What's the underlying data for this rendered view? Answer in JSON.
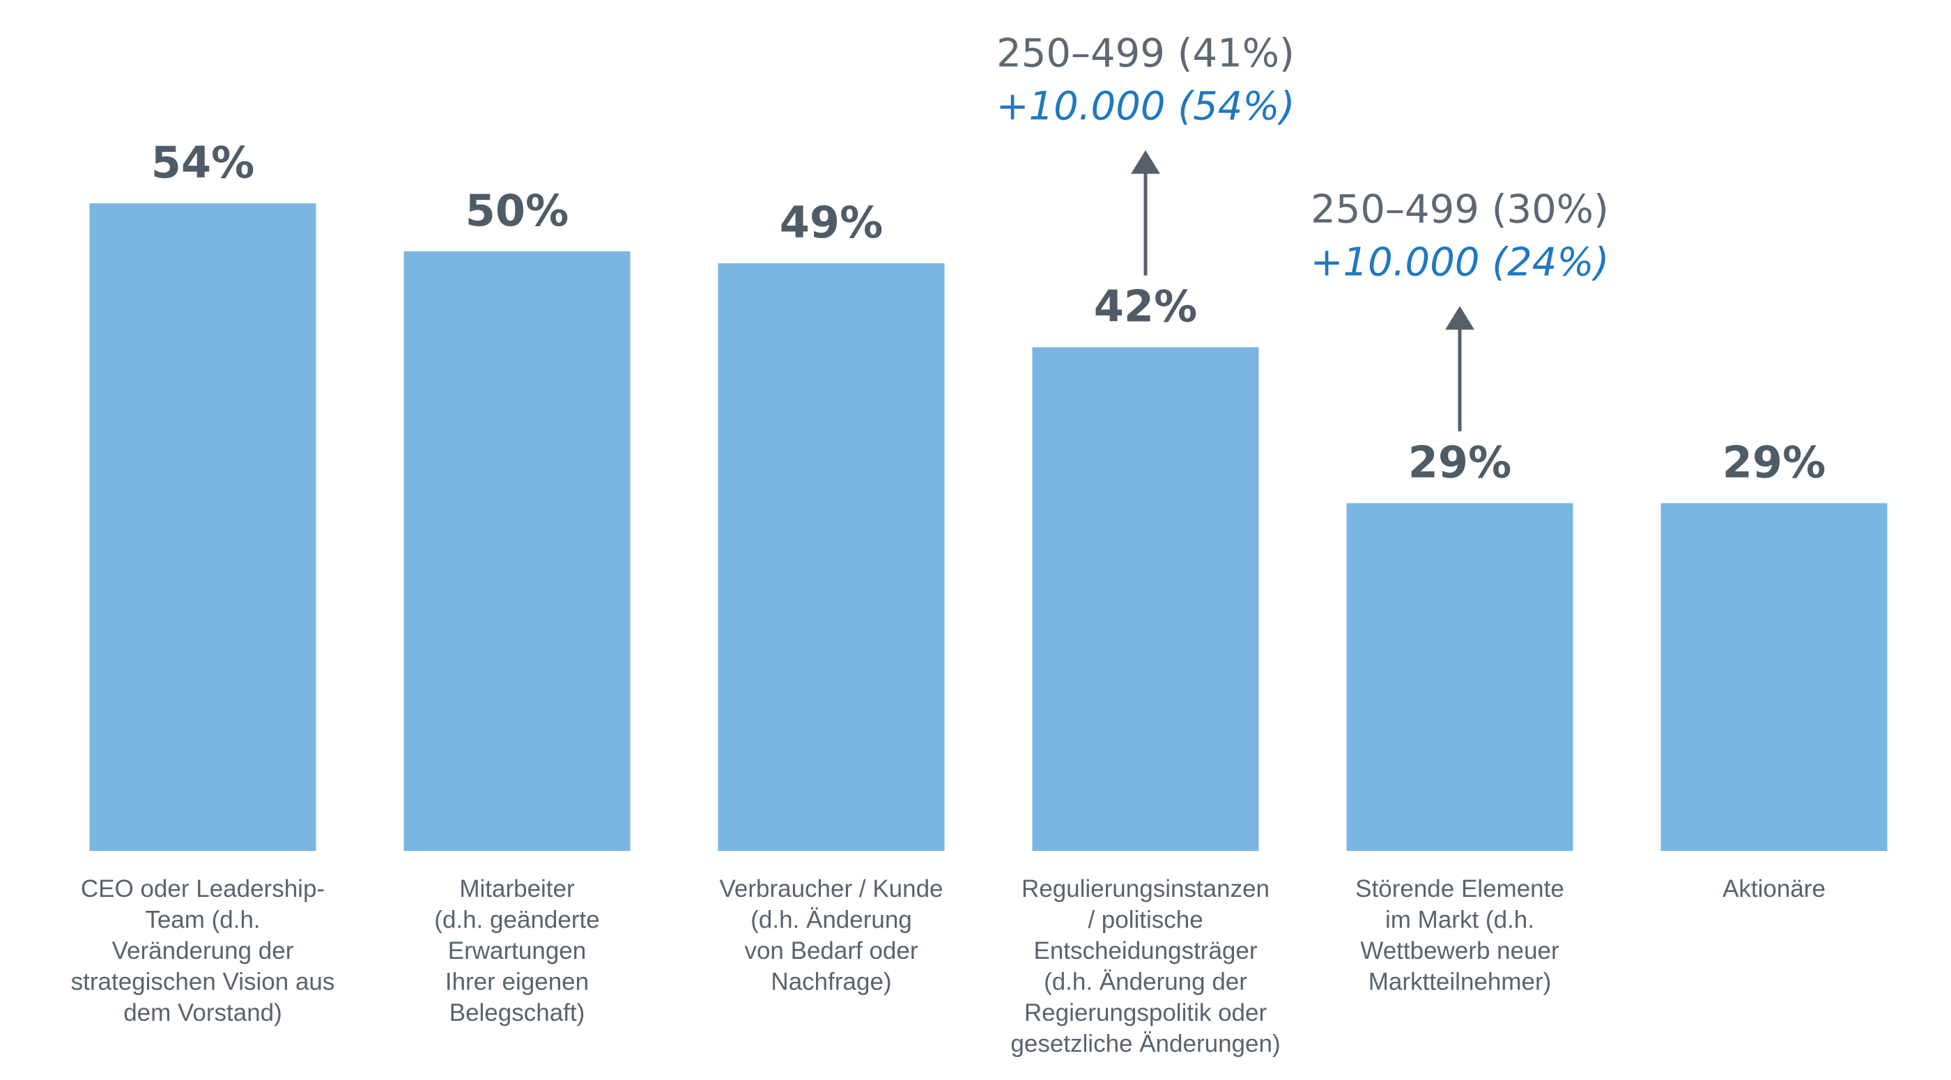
{
  "colors": {
    "bar": "#7BB5E2",
    "value_text": "#4F5B66",
    "label_text": "#58636D",
    "annotation_text": "#5D6873",
    "annotation_highlight": "#1F78C1",
    "arrow": "#56606B"
  },
  "chart_data": {
    "type": "bar",
    "ylim": [
      0,
      100
    ],
    "categories": [
      {
        "lines": [
          "CEO oder Leadership-",
          "Team (d.h.",
          "Veränderung der",
          "strategischen Vision aus",
          "dem Vorstand)"
        ]
      },
      {
        "lines": [
          "Mitarbeiter",
          "(d.h. geänderte",
          "Erwartungen",
          "Ihrer eigenen",
          "Belegschaft)"
        ]
      },
      {
        "lines": [
          "Verbraucher / Kunde",
          "(d.h. Änderung",
          "von Bedarf oder",
          "Nachfrage)"
        ]
      },
      {
        "lines": [
          "Regulierungsinstanzen",
          "/ politische",
          "Entscheidungsträger",
          "(d.h. Änderung der",
          "Regierungspolitik oder",
          "gesetzliche Änderungen)"
        ]
      },
      {
        "lines": [
          "Störende Elemente",
          "im Markt (d.h.",
          "Wettbewerb neuer",
          "Marktteilnehmer)"
        ]
      },
      {
        "lines": [
          "Aktionäre"
        ]
      }
    ],
    "values": [
      54,
      50,
      49,
      42,
      29,
      29
    ],
    "value_labels": [
      "54%",
      "50%",
      "49%",
      "42%",
      "29%",
      "29%"
    ],
    "annotations": [
      {
        "bar_index": 3,
        "line1": "250–499 (41%)",
        "line2": "+10.000 (54%)"
      },
      {
        "bar_index": 4,
        "line1": "250–499 (30%)",
        "line2": "+10.000 (24%)"
      }
    ]
  }
}
